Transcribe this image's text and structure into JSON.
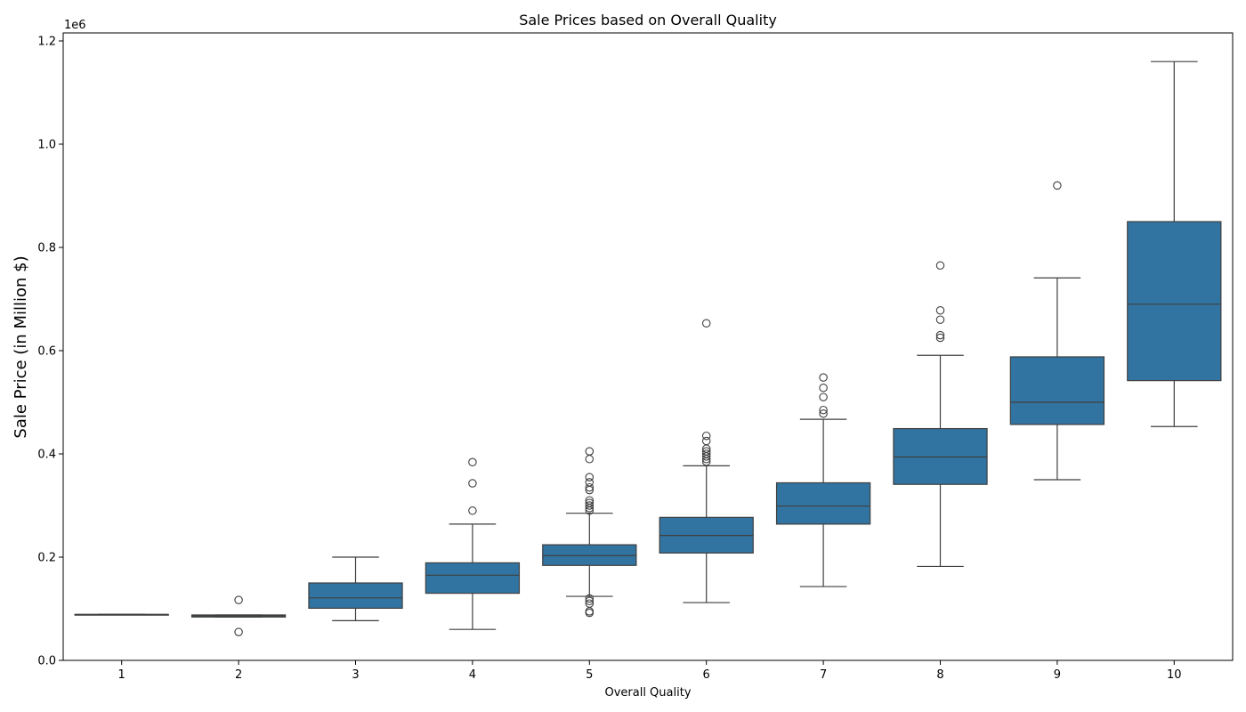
{
  "chart_data": {
    "type": "box",
    "title": "Sale Prices based on Overall Quality",
    "xlabel": "Overall Quality",
    "ylabel": "Sale Price (in Million $)",
    "y_offset_label": "1e6",
    "ylim": [
      0,
      1.2
    ],
    "yticks": [
      "0.0",
      "0.2",
      "0.4",
      "0.6",
      "0.8",
      "1.0",
      "1.2"
    ],
    "categories": [
      "1",
      "2",
      "3",
      "4",
      "5",
      "6",
      "7",
      "8",
      "9",
      "10"
    ],
    "box_color": "#3274a1",
    "series": [
      {
        "category": "1",
        "whisker_low": 0.089,
        "q1": 0.089,
        "median": 0.089,
        "q3": 0.089,
        "whisker_high": 0.089,
        "outliers": []
      },
      {
        "category": "2",
        "whisker_low": 0.084,
        "q1": 0.084,
        "median": 0.086,
        "q3": 0.088,
        "whisker_high": 0.088,
        "outliers": [
          0.117,
          0.055
        ]
      },
      {
        "category": "3",
        "whisker_low": 0.077,
        "q1": 0.101,
        "median": 0.121,
        "q3": 0.15,
        "whisker_high": 0.2,
        "outliers": []
      },
      {
        "category": "4",
        "whisker_low": 0.06,
        "q1": 0.13,
        "median": 0.165,
        "q3": 0.189,
        "whisker_high": 0.264,
        "outliers": [
          0.384,
          0.343,
          0.29
        ]
      },
      {
        "category": "5",
        "whisker_low": 0.124,
        "q1": 0.184,
        "median": 0.203,
        "q3": 0.224,
        "whisker_high": 0.285,
        "outliers": [
          0.405,
          0.39,
          0.355,
          0.345,
          0.335,
          0.33,
          0.31,
          0.305,
          0.3,
          0.295,
          0.29,
          0.12,
          0.115,
          0.11,
          0.095,
          0.092
        ]
      },
      {
        "category": "6",
        "whisker_low": 0.112,
        "q1": 0.208,
        "median": 0.242,
        "q3": 0.277,
        "whisker_high": 0.377,
        "outliers": [
          0.653,
          0.435,
          0.425,
          0.41,
          0.405,
          0.4,
          0.395,
          0.39,
          0.385
        ]
      },
      {
        "category": "7",
        "whisker_low": 0.143,
        "q1": 0.264,
        "median": 0.299,
        "q3": 0.344,
        "whisker_high": 0.467,
        "outliers": [
          0.548,
          0.528,
          0.51,
          0.485,
          0.478
        ]
      },
      {
        "category": "8",
        "whisker_low": 0.182,
        "q1": 0.341,
        "median": 0.394,
        "q3": 0.449,
        "whisker_high": 0.591,
        "outliers": [
          0.765,
          0.678,
          0.66,
          0.63,
          0.625
        ]
      },
      {
        "category": "9",
        "whisker_low": 0.35,
        "q1": 0.457,
        "median": 0.5,
        "q3": 0.588,
        "whisker_high": 0.741,
        "outliers": [
          0.92
        ]
      },
      {
        "category": "10",
        "whisker_low": 0.453,
        "q1": 0.542,
        "median": 0.69,
        "q3": 0.85,
        "whisker_high": 1.16,
        "outliers": []
      }
    ]
  }
}
